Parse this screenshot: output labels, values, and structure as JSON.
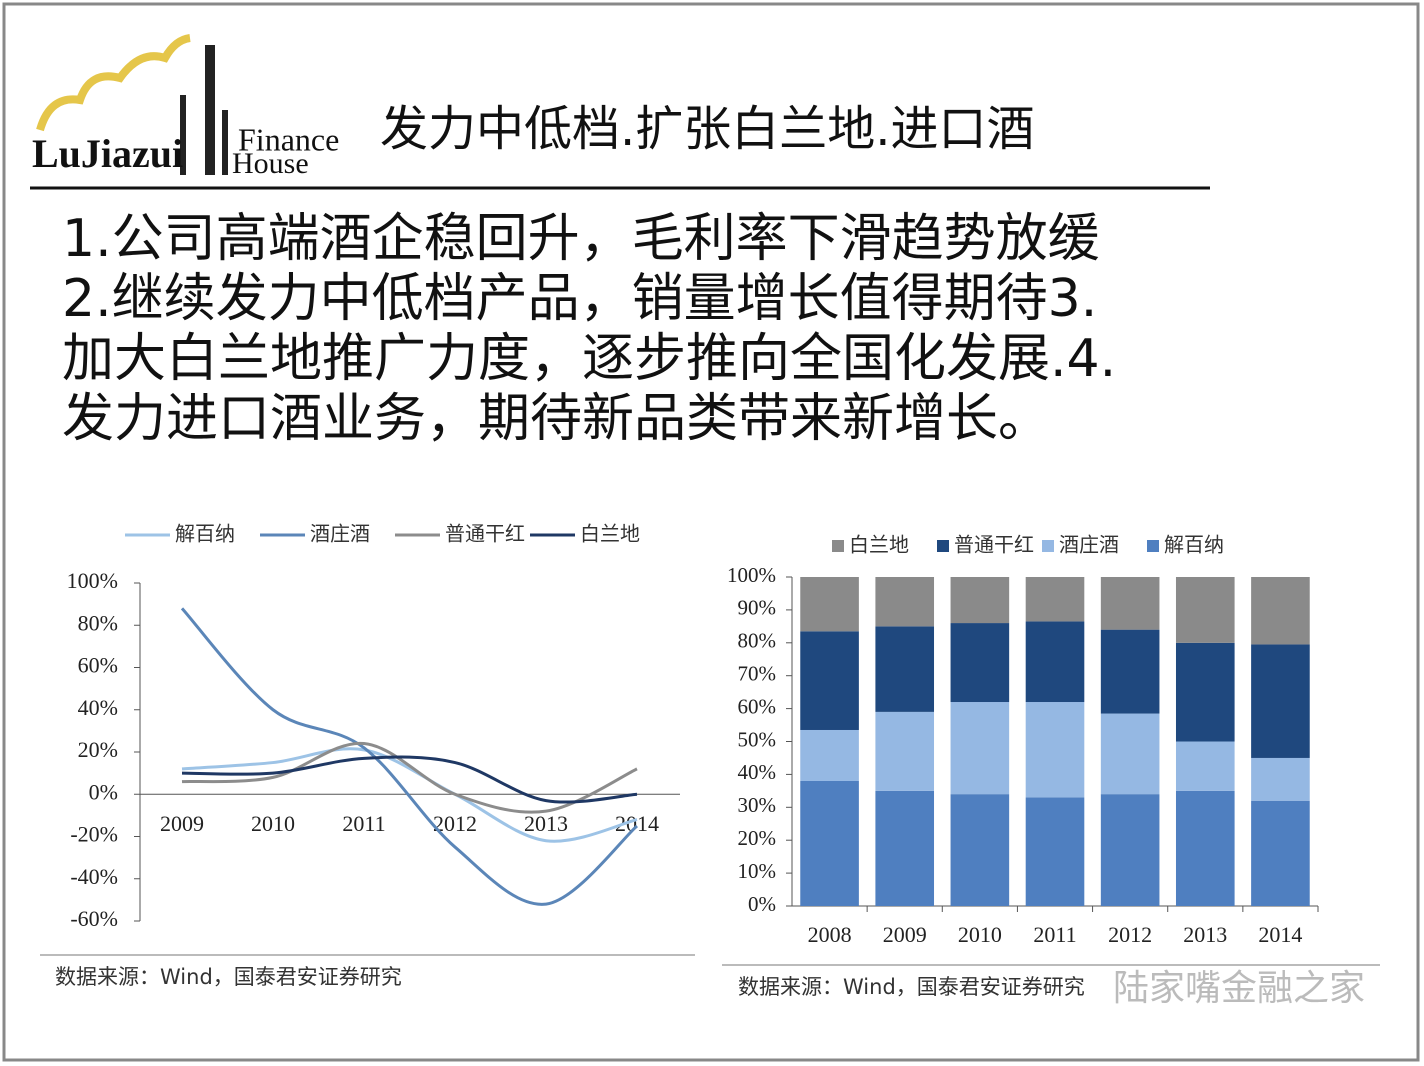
{
  "logo": {
    "brand": "LuJiazui",
    "finance": "Finance",
    "house": "House"
  },
  "title": "发力中低档.扩张白兰地.进口酒",
  "body": [
    "1.公司高端酒企稳回升，毛利率下滑趋势放缓",
    "2.继续发力中低档产品，销量增长值得期待3.",
    "加大白兰地推广力度，逐步推向全国化发展.4.",
    "发力进口酒业务，期待新品类带来新增长。"
  ],
  "watermark": "陆家嘴金融之家",
  "chart_data": [
    {
      "type": "line",
      "source": "数据来源：Wind，国泰君安证券研究",
      "categories": [
        "2009",
        "2010",
        "2011",
        "2012",
        "2013",
        "2014"
      ],
      "series": [
        {
          "name": "解百纳",
          "color": "#9dc3e6",
          "values": [
            12,
            15,
            21,
            0,
            -22,
            -12
          ]
        },
        {
          "name": "酒庄酒",
          "color": "#5b86b8",
          "values": [
            88,
            40,
            22,
            -25,
            -52,
            -15
          ]
        },
        {
          "name": "普通干红",
          "color": "#8c8c8c",
          "values": [
            6,
            8,
            24,
            0,
            -8,
            12
          ]
        },
        {
          "name": "白兰地",
          "color": "#1f3864",
          "values": [
            10,
            10,
            17,
            15,
            -3,
            0
          ]
        }
      ],
      "ylim": [
        -60,
        100
      ],
      "yticks": [
        {
          "value": -60,
          "label": "-60%"
        },
        {
          "value": -40,
          "label": "-40%"
        },
        {
          "value": -20,
          "label": "-20%"
        },
        {
          "value": 0,
          "label": "0%"
        },
        {
          "value": 20,
          "label": "20%"
        },
        {
          "value": 40,
          "label": "40%"
        },
        {
          "value": 60,
          "label": "60%"
        },
        {
          "value": 80,
          "label": "80%"
        },
        {
          "value": 100,
          "label": "100%"
        }
      ]
    },
    {
      "type": "stacked_bar",
      "source": "数据来源：Wind，国泰君安证券研究",
      "categories": [
        "2008",
        "2009",
        "2010",
        "2011",
        "2012",
        "2013",
        "2014"
      ],
      "series": [
        {
          "name": "解百纳",
          "color": "#4f7fc0",
          "values": [
            38,
            35,
            34,
            33,
            34,
            35,
            32
          ]
        },
        {
          "name": "酒庄酒",
          "color": "#95b8e3",
          "values": [
            15.5,
            24,
            28,
            29,
            24.5,
            15,
            13
          ]
        },
        {
          "name": "普通干红",
          "color": "#1f487e",
          "values": [
            30,
            26,
            24,
            24.5,
            25.5,
            30,
            34.5
          ]
        },
        {
          "name": "白兰地",
          "color": "#8a8a8a",
          "values": [
            16.5,
            15,
            14,
            13.5,
            16,
            20,
            20.5
          ]
        }
      ],
      "ylim": [
        0,
        100
      ],
      "yticks": [
        {
          "value": 0,
          "label": "0%"
        },
        {
          "value": 10,
          "label": "10%"
        },
        {
          "value": 20,
          "label": "20%"
        },
        {
          "value": 30,
          "label": "30%"
        },
        {
          "value": 40,
          "label": "40%"
        },
        {
          "value": 50,
          "label": "50%"
        },
        {
          "value": 60,
          "label": "60%"
        },
        {
          "value": 70,
          "label": "70%"
        },
        {
          "value": 80,
          "label": "80%"
        },
        {
          "value": 90,
          "label": "90%"
        },
        {
          "value": 100,
          "label": "100%"
        }
      ]
    }
  ]
}
